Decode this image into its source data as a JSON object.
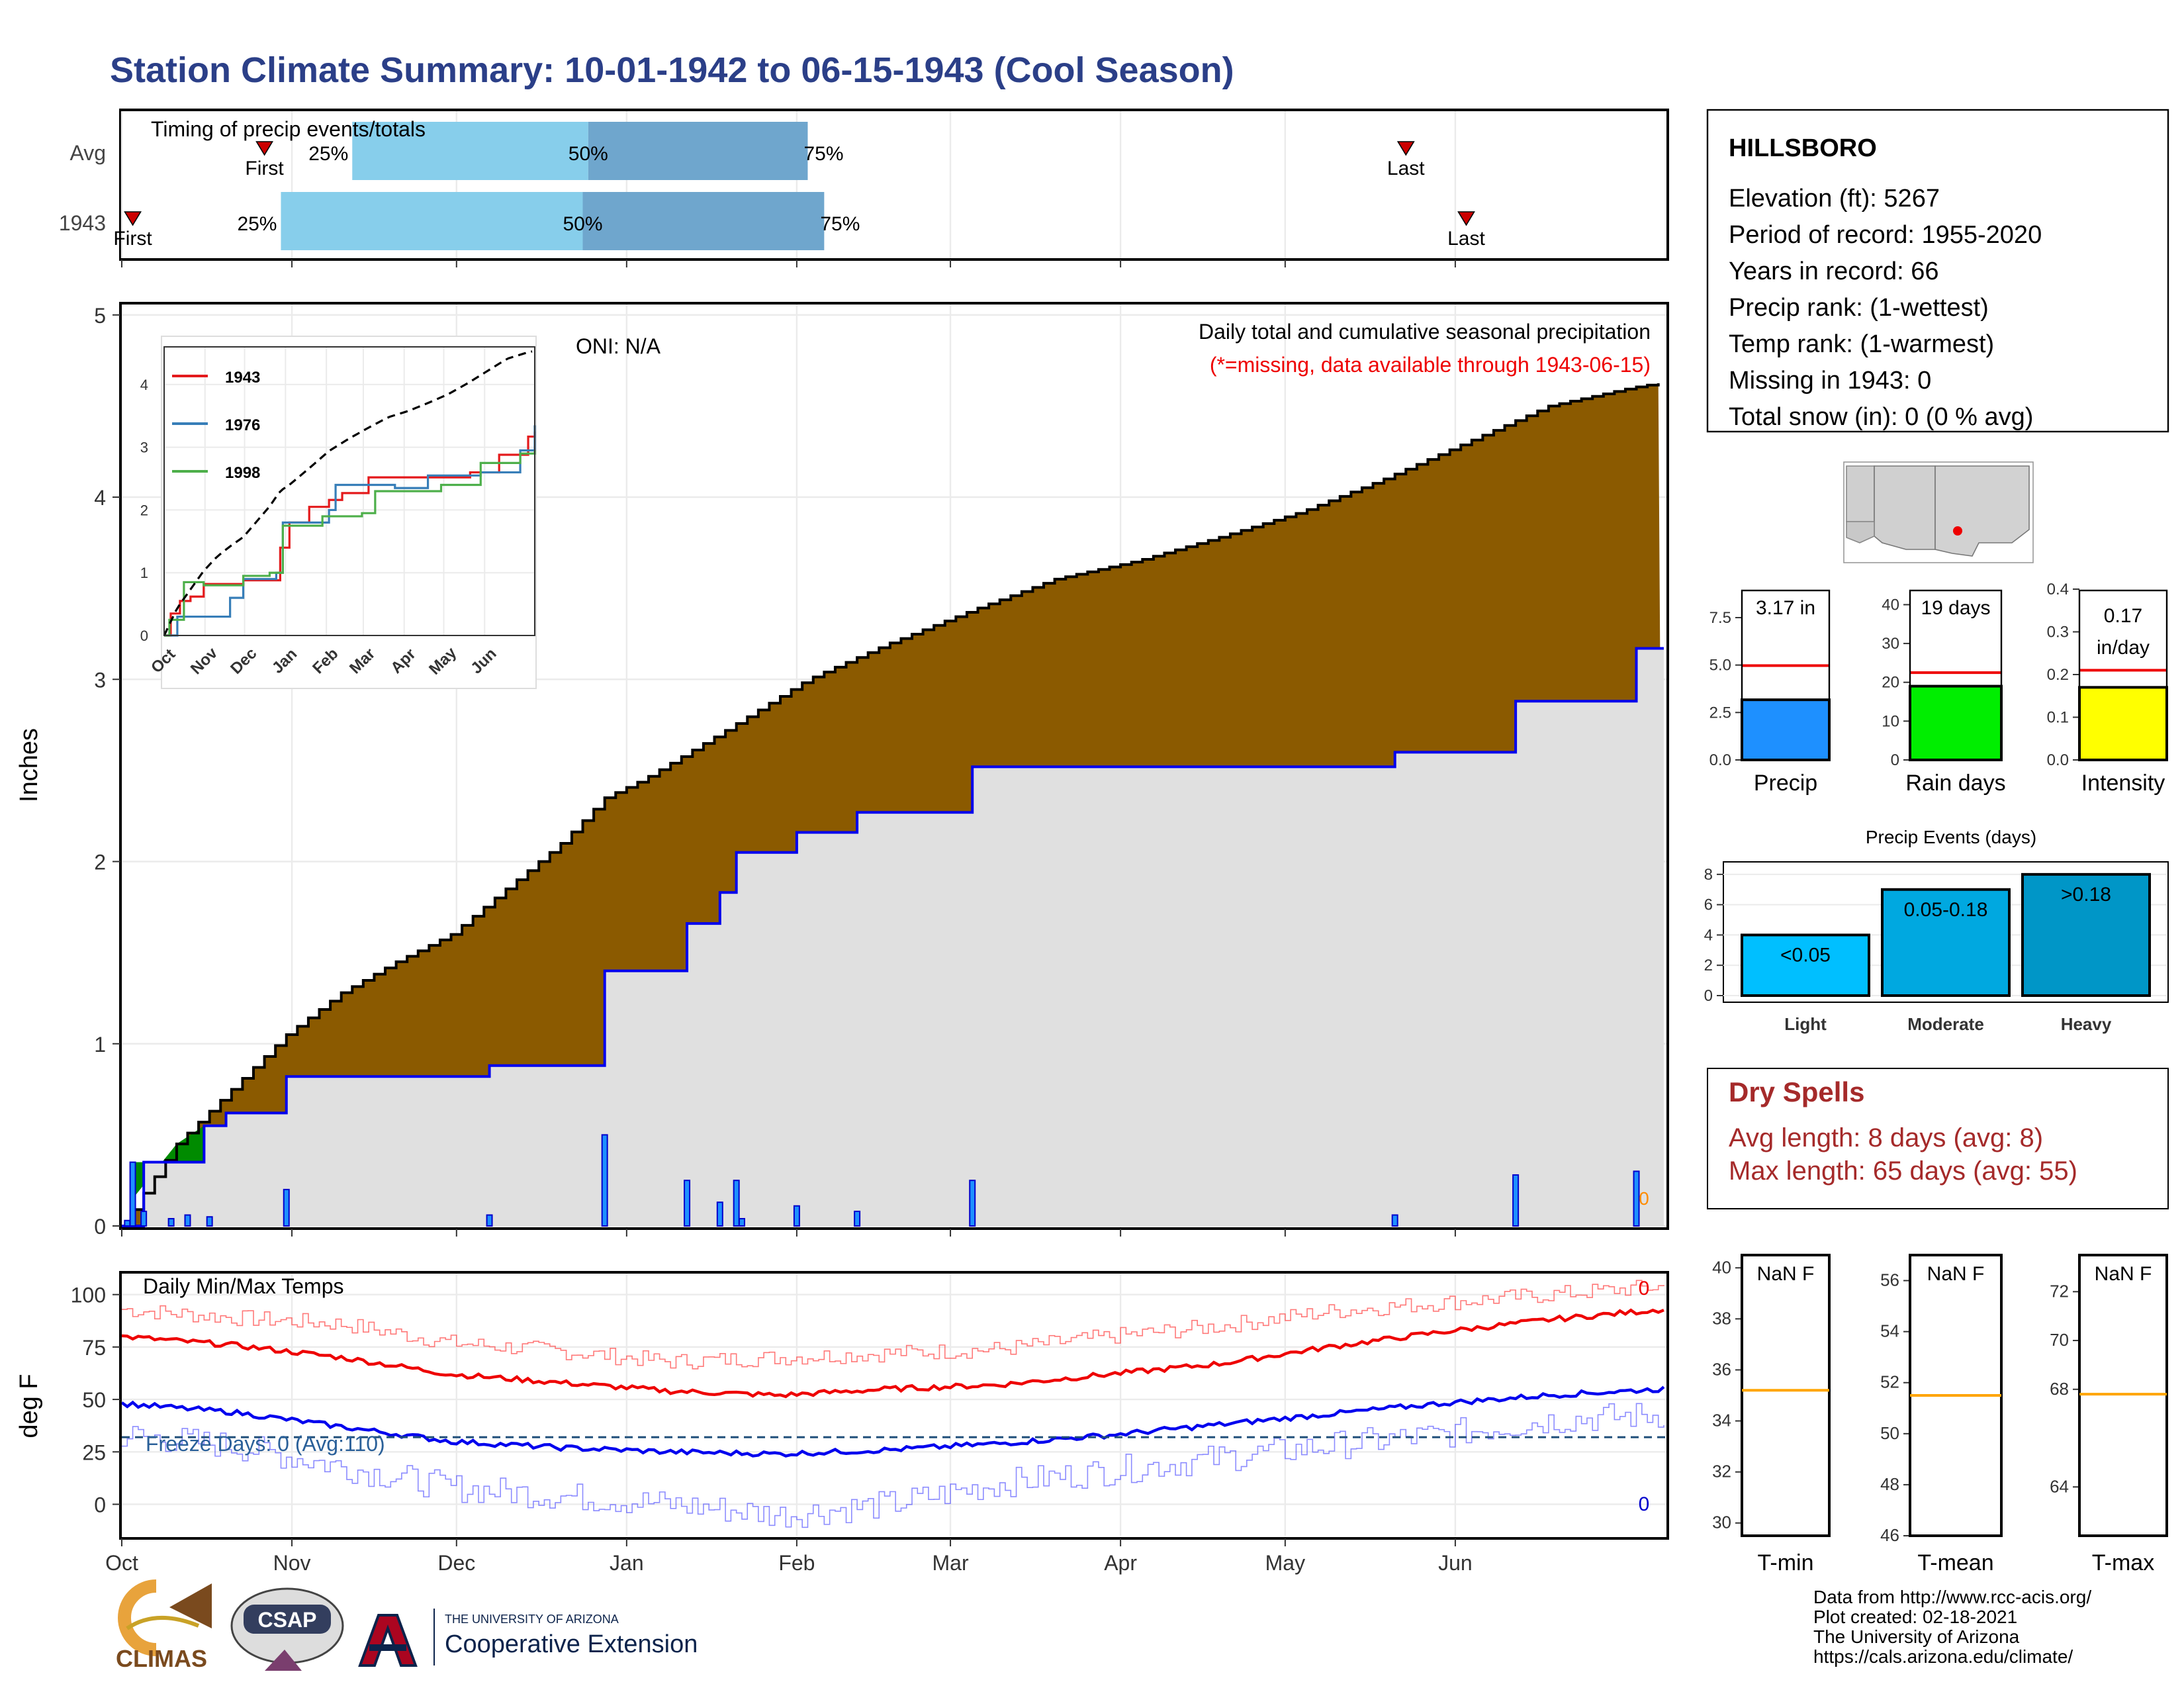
{
  "title": "Station Climate Summary: 10-01-1942 to 06-15-1943 (Cool Season)",
  "timing": {
    "label": "Timing of precip events/totals",
    "rows": [
      {
        "name": "Avg",
        "first": "First",
        "last": "Last",
        "p25": "25%",
        "p50": "50%",
        "p75": "75%",
        "first_day": 26,
        "p25_day": 42,
        "p50_day": 85,
        "p75_day": 125,
        "last_day": 234
      },
      {
        "name": "1943",
        "first": "First",
        "last": "Last",
        "p25": "25%",
        "p50": "50%",
        "p75": "75%",
        "first_day": 2,
        "p25_day": 29,
        "p50_day": 84,
        "p75_day": 128,
        "last_day": 245
      }
    ]
  },
  "precip_panel": {
    "ylabel": "Inches",
    "oni": "ONI: N/A",
    "subtitle": "Daily total and cumulative seasonal precipitation",
    "note": "(*=missing, data available through 1943-06-15)",
    "missing_count": "0",
    "yticks": [
      "0",
      "1",
      "2",
      "3",
      "4",
      "5"
    ]
  },
  "temp_panel": {
    "label": "Daily Min/Max Temps",
    "ylabel": "deg F",
    "freeze": "Freeze Days: 0 (Avg:110)",
    "missing_max": "0",
    "missing_min": "0",
    "yticks": [
      "0",
      "25",
      "50",
      "75",
      "100"
    ]
  },
  "months": [
    "Oct",
    "Nov",
    "Dec",
    "Jan",
    "Feb",
    "Mar",
    "Apr",
    "May",
    "Jun"
  ],
  "station": {
    "name": "HILLSBORO",
    "lines": [
      "Elevation (ft): 5267",
      "Period of record: 1955-2020",
      "Years in record: 66",
      "Precip rank:  (1-wettest)",
      "Temp rank:  (1-warmest)",
      "Missing in 1943: 0",
      "Total snow (in): 0 (0 % avg)"
    ]
  },
  "mini_bars": [
    {
      "label": "Precip",
      "value_text": "3.17 in",
      "value": 3.17,
      "avg": 4.97,
      "ymax": 9.0,
      "ticks": [
        "0.0",
        "2.5",
        "5.0",
        "7.5"
      ],
      "tickvals": [
        0,
        2.5,
        5,
        7.5
      ],
      "color": "#1e90ff"
    },
    {
      "label": "Rain days",
      "value_text": "19 days",
      "value": 19,
      "avg": 22.5,
      "ymax": 44,
      "ticks": [
        "0",
        "10",
        "20",
        "30",
        "40"
      ],
      "tickvals": [
        0,
        10,
        20,
        30,
        40
      ],
      "color": "#00ee00"
    },
    {
      "label": "Intensity",
      "value_text": "0.17 in/day",
      "value": 0.17,
      "avg": 0.21,
      "ymax": 0.4,
      "ticks": [
        "0.0",
        "0.1",
        "0.2",
        "0.3",
        "0.4"
      ],
      "tickvals": [
        0,
        0.1,
        0.2,
        0.3,
        0.4
      ],
      "color": "#ffff00"
    }
  ],
  "events": {
    "title": "Precip Events (days)",
    "ticks": [
      "0",
      "2",
      "4",
      "6",
      "8"
    ],
    "bars": [
      {
        "name": "Light",
        "label": "<0.05",
        "value": 4,
        "color": "#00bfff"
      },
      {
        "name": "Moderate",
        "label": "0.05-0.18",
        "value": 7,
        "color": "#00a8e0"
      },
      {
        "name": "Heavy",
        "label": ">0.18",
        "value": 8,
        "color": "#0096c7"
      }
    ]
  },
  "dry_spells": {
    "title": "Dry Spells",
    "avg": "Avg length: 8 days (avg: 8)",
    "max": "Max length: 65 days (avg: 55)"
  },
  "temp_boxes": [
    {
      "label": "T-min",
      "value": "NaN F",
      "ticks": [
        "30",
        "32",
        "34",
        "36",
        "38",
        "40"
      ],
      "avg_line": 35.2,
      "range": [
        29.5,
        40.5
      ]
    },
    {
      "label": "T-mean",
      "value": "NaN F",
      "ticks": [
        "46",
        "48",
        "50",
        "52",
        "54",
        "56"
      ],
      "avg_line": 51.5,
      "range": [
        46,
        57
      ]
    },
    {
      "label": "T-max",
      "value": "NaN F",
      "ticks": [
        "64",
        "68",
        "70",
        "72"
      ],
      "avg_line": 67.8,
      "range": [
        62,
        73.5
      ]
    }
  ],
  "footer": [
    "Data from http://www.rcc-acis.org/",
    "Plot created: 02-18-2021",
    "The University of Arizona",
    "https://cals.arizona.edu/climate/"
  ],
  "logos": {
    "climas": "CLIMAS",
    "csap": "CSAP",
    "ua_line1": "THE UNIVERSITY OF ARIZONA",
    "ua_line2": "Cooperative Extension"
  },
  "inset": {
    "series": [
      {
        "name": "1943",
        "color": "#e41a1c"
      },
      {
        "name": "1976",
        "color": "#377eb8"
      },
      {
        "name": "1998",
        "color": "#4daf4a"
      }
    ],
    "yticks": [
      "0",
      "1",
      "2",
      "3",
      "4"
    ],
    "months": [
      "Oct",
      "Nov",
      "Dec",
      "Jan",
      "Feb",
      "Mar",
      "Apr",
      "May",
      "Jun"
    ]
  },
  "chart_data": {
    "type": "area",
    "title": "Daily total and cumulative seasonal precipitation",
    "ylabel": "Inches",
    "ylim": [
      0,
      5
    ],
    "observed_cumulative": [
      [
        0,
        0.0
      ],
      [
        4,
        0.35
      ],
      [
        15,
        0.55
      ],
      [
        19,
        0.62
      ],
      [
        29,
        0.62
      ],
      [
        30,
        0.82
      ],
      [
        66,
        0.82
      ],
      [
        67,
        0.88
      ],
      [
        87,
        0.88
      ],
      [
        88,
        1.4
      ],
      [
        102,
        1.4
      ],
      [
        103,
        1.66
      ],
      [
        108,
        1.66
      ],
      [
        109,
        1.83
      ],
      [
        111,
        1.83
      ],
      [
        112,
        2.05
      ],
      [
        122,
        2.05
      ],
      [
        123,
        2.16
      ],
      [
        133,
        2.16
      ],
      [
        134,
        2.27
      ],
      [
        154,
        2.27
      ],
      [
        155,
        2.52
      ],
      [
        231,
        2.52
      ],
      [
        232,
        2.6
      ],
      [
        253,
        2.6
      ],
      [
        254,
        2.88
      ],
      [
        275,
        2.88
      ],
      [
        276,
        3.17
      ],
      [
        281,
        3.17
      ]
    ],
    "average_cumulative": [
      [
        0,
        0.0
      ],
      [
        10,
        0.45
      ],
      [
        20,
        0.75
      ],
      [
        30,
        1.05
      ],
      [
        40,
        1.28
      ],
      [
        50,
        1.45
      ],
      [
        60,
        1.6
      ],
      [
        70,
        1.85
      ],
      [
        80,
        2.1
      ],
      [
        88,
        2.35
      ],
      [
        95,
        2.45
      ],
      [
        110,
        2.72
      ],
      [
        125,
        3.0
      ],
      [
        140,
        3.2
      ],
      [
        155,
        3.38
      ],
      [
        170,
        3.55
      ],
      [
        185,
        3.65
      ],
      [
        200,
        3.78
      ],
      [
        215,
        3.92
      ],
      [
        230,
        4.1
      ],
      [
        245,
        4.3
      ],
      [
        260,
        4.5
      ],
      [
        275,
        4.6
      ],
      [
        281,
        4.63
      ]
    ],
    "daily_precip": [
      [
        1,
        0.03
      ],
      [
        2,
        0.35
      ],
      [
        4,
        0.08
      ],
      [
        9,
        0.04
      ],
      [
        12,
        0.06
      ],
      [
        16,
        0.05
      ],
      [
        30,
        0.2
      ],
      [
        67,
        0.06
      ],
      [
        88,
        0.5
      ],
      [
        103,
        0.25
      ],
      [
        109,
        0.13
      ],
      [
        112,
        0.25
      ],
      [
        113,
        0.04
      ],
      [
        123,
        0.11
      ],
      [
        134,
        0.08
      ],
      [
        155,
        0.25
      ],
      [
        232,
        0.06
      ],
      [
        254,
        0.28
      ],
      [
        276,
        0.3
      ]
    ],
    "temp_max_avg": [
      [
        0,
        80
      ],
      [
        20,
        76
      ],
      [
        40,
        70
      ],
      [
        60,
        62
      ],
      [
        80,
        58
      ],
      [
        100,
        54
      ],
      [
        120,
        52
      ],
      [
        140,
        55
      ],
      [
        160,
        57
      ],
      [
        180,
        62
      ],
      [
        200,
        67
      ],
      [
        220,
        75
      ],
      [
        240,
        82
      ],
      [
        260,
        88
      ],
      [
        281,
        93
      ]
    ],
    "temp_min_avg": [
      [
        0,
        48
      ],
      [
        20,
        44
      ],
      [
        40,
        37
      ],
      [
        60,
        30
      ],
      [
        80,
        27
      ],
      [
        100,
        25
      ],
      [
        120,
        24
      ],
      [
        140,
        26
      ],
      [
        160,
        29
      ],
      [
        180,
        33
      ],
      [
        200,
        38
      ],
      [
        220,
        43
      ],
      [
        240,
        48
      ],
      [
        260,
        52
      ],
      [
        281,
        55
      ]
    ],
    "temp_max_record": [
      [
        0,
        93
      ],
      [
        20,
        89
      ],
      [
        40,
        86
      ],
      [
        60,
        77
      ],
      [
        80,
        73
      ],
      [
        100,
        68
      ],
      [
        120,
        70
      ],
      [
        140,
        72
      ],
      [
        160,
        74
      ],
      [
        180,
        80
      ],
      [
        200,
        85
      ],
      [
        220,
        92
      ],
      [
        240,
        96
      ],
      [
        260,
        100
      ],
      [
        281,
        104
      ]
    ],
    "temp_min_record": [
      [
        0,
        33
      ],
      [
        20,
        28
      ],
      [
        40,
        18
      ],
      [
        60,
        8
      ],
      [
        80,
        4
      ],
      [
        100,
        0
      ],
      [
        120,
        -5
      ],
      [
        140,
        0
      ],
      [
        160,
        10
      ],
      [
        180,
        16
      ],
      [
        200,
        22
      ],
      [
        220,
        28
      ],
      [
        240,
        33
      ],
      [
        260,
        40
      ],
      [
        281,
        43
      ]
    ],
    "freeze_line": 32,
    "temp_ylim": [
      -15,
      110
    ]
  }
}
